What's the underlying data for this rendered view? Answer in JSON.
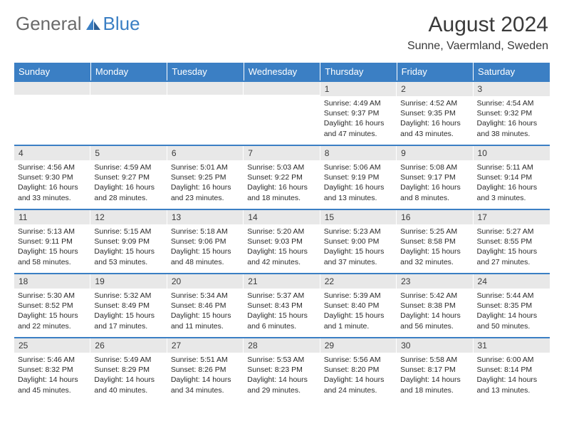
{
  "logo": {
    "text1": "General",
    "text2": "Blue"
  },
  "title": "August 2024",
  "location": "Sunne, Vaermland, Sweden",
  "colors": {
    "header_bg": "#3b7fc4",
    "daynum_bg": "#e8e8e8",
    "text": "#3a3a3a",
    "logo_gray": "#6a6a6a"
  },
  "weekdays": [
    "Sunday",
    "Monday",
    "Tuesday",
    "Wednesday",
    "Thursday",
    "Friday",
    "Saturday"
  ],
  "weeks": [
    [
      null,
      null,
      null,
      null,
      {
        "n": "1",
        "sr": "4:49 AM",
        "ss": "9:37 PM",
        "dl": "16 hours and 47 minutes."
      },
      {
        "n": "2",
        "sr": "4:52 AM",
        "ss": "9:35 PM",
        "dl": "16 hours and 43 minutes."
      },
      {
        "n": "3",
        "sr": "4:54 AM",
        "ss": "9:32 PM",
        "dl": "16 hours and 38 minutes."
      }
    ],
    [
      {
        "n": "4",
        "sr": "4:56 AM",
        "ss": "9:30 PM",
        "dl": "16 hours and 33 minutes."
      },
      {
        "n": "5",
        "sr": "4:59 AM",
        "ss": "9:27 PM",
        "dl": "16 hours and 28 minutes."
      },
      {
        "n": "6",
        "sr": "5:01 AM",
        "ss": "9:25 PM",
        "dl": "16 hours and 23 minutes."
      },
      {
        "n": "7",
        "sr": "5:03 AM",
        "ss": "9:22 PM",
        "dl": "16 hours and 18 minutes."
      },
      {
        "n": "8",
        "sr": "5:06 AM",
        "ss": "9:19 PM",
        "dl": "16 hours and 13 minutes."
      },
      {
        "n": "9",
        "sr": "5:08 AM",
        "ss": "9:17 PM",
        "dl": "16 hours and 8 minutes."
      },
      {
        "n": "10",
        "sr": "5:11 AM",
        "ss": "9:14 PM",
        "dl": "16 hours and 3 minutes."
      }
    ],
    [
      {
        "n": "11",
        "sr": "5:13 AM",
        "ss": "9:11 PM",
        "dl": "15 hours and 58 minutes."
      },
      {
        "n": "12",
        "sr": "5:15 AM",
        "ss": "9:09 PM",
        "dl": "15 hours and 53 minutes."
      },
      {
        "n": "13",
        "sr": "5:18 AM",
        "ss": "9:06 PM",
        "dl": "15 hours and 48 minutes."
      },
      {
        "n": "14",
        "sr": "5:20 AM",
        "ss": "9:03 PM",
        "dl": "15 hours and 42 minutes."
      },
      {
        "n": "15",
        "sr": "5:23 AM",
        "ss": "9:00 PM",
        "dl": "15 hours and 37 minutes."
      },
      {
        "n": "16",
        "sr": "5:25 AM",
        "ss": "8:58 PM",
        "dl": "15 hours and 32 minutes."
      },
      {
        "n": "17",
        "sr": "5:27 AM",
        "ss": "8:55 PM",
        "dl": "15 hours and 27 minutes."
      }
    ],
    [
      {
        "n": "18",
        "sr": "5:30 AM",
        "ss": "8:52 PM",
        "dl": "15 hours and 22 minutes."
      },
      {
        "n": "19",
        "sr": "5:32 AM",
        "ss": "8:49 PM",
        "dl": "15 hours and 17 minutes."
      },
      {
        "n": "20",
        "sr": "5:34 AM",
        "ss": "8:46 PM",
        "dl": "15 hours and 11 minutes."
      },
      {
        "n": "21",
        "sr": "5:37 AM",
        "ss": "8:43 PM",
        "dl": "15 hours and 6 minutes."
      },
      {
        "n": "22",
        "sr": "5:39 AM",
        "ss": "8:40 PM",
        "dl": "15 hours and 1 minute."
      },
      {
        "n": "23",
        "sr": "5:42 AM",
        "ss": "8:38 PM",
        "dl": "14 hours and 56 minutes."
      },
      {
        "n": "24",
        "sr": "5:44 AM",
        "ss": "8:35 PM",
        "dl": "14 hours and 50 minutes."
      }
    ],
    [
      {
        "n": "25",
        "sr": "5:46 AM",
        "ss": "8:32 PM",
        "dl": "14 hours and 45 minutes."
      },
      {
        "n": "26",
        "sr": "5:49 AM",
        "ss": "8:29 PM",
        "dl": "14 hours and 40 minutes."
      },
      {
        "n": "27",
        "sr": "5:51 AM",
        "ss": "8:26 PM",
        "dl": "14 hours and 34 minutes."
      },
      {
        "n": "28",
        "sr": "5:53 AM",
        "ss": "8:23 PM",
        "dl": "14 hours and 29 minutes."
      },
      {
        "n": "29",
        "sr": "5:56 AM",
        "ss": "8:20 PM",
        "dl": "14 hours and 24 minutes."
      },
      {
        "n": "30",
        "sr": "5:58 AM",
        "ss": "8:17 PM",
        "dl": "14 hours and 18 minutes."
      },
      {
        "n": "31",
        "sr": "6:00 AM",
        "ss": "8:14 PM",
        "dl": "14 hours and 13 minutes."
      }
    ]
  ],
  "labels": {
    "sunrise": "Sunrise:",
    "sunset": "Sunset:",
    "daylight": "Daylight:"
  }
}
